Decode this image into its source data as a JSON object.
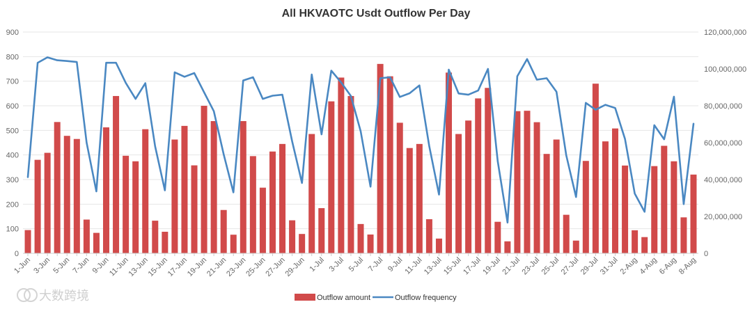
{
  "chart_data": {
    "type": "bar",
    "title": "All HKVAOTC Usdt Outflow Per Day",
    "categories": [
      "1-Jun",
      "2-Jun",
      "3-Jun",
      "4-Jun",
      "5-Jun",
      "6-Jun",
      "7-Jun",
      "8-Jun",
      "9-Jun",
      "10-Jun",
      "11-Jun",
      "12-Jun",
      "13-Jun",
      "14-Jun",
      "15-Jun",
      "16-Jun",
      "17-Jun",
      "18-Jun",
      "19-Jun",
      "20-Jun",
      "21-Jun",
      "22-Jun",
      "23-Jun",
      "24-Jun",
      "25-Jun",
      "26-Jun",
      "27-Jun",
      "28-Jun",
      "29-Jun",
      "30-Jun",
      "1-Jul",
      "2-Jul",
      "3-Jul",
      "4-Jul",
      "5-Jul",
      "6-Jul",
      "7-Jul",
      "8-Jul",
      "9-Jul",
      "10-Jul",
      "11-Jul",
      "12-Jul",
      "13-Jul",
      "14-Jul",
      "15-Jul",
      "16-Jul",
      "17-Jul",
      "18-Jul",
      "19-Jul",
      "20-Jul",
      "21-Jul",
      "22-Jul",
      "23-Jul",
      "24-Jul",
      "25-Jul",
      "26-Jul",
      "27-Jul",
      "28-Jul",
      "29-Jul",
      "30-Jul",
      "31-Jul",
      "1-Aug",
      "2-Aug",
      "3-Aug",
      "4-Aug",
      "5-Aug",
      "6-Aug",
      "7-Aug",
      "8-Aug"
    ],
    "xtick_labels": [
      "1-Jun",
      "3-Jun",
      "5-Jun",
      "7-Jun",
      "9-Jun",
      "11-Jun",
      "13-Jun",
      "15-Jun",
      "17-Jun",
      "19-Jun",
      "21-Jun",
      "23-Jun",
      "25-Jun",
      "27-Jun",
      "29-Jun",
      "1-Jul",
      "3-Jul",
      "5-Jul",
      "7-Jul",
      "9-Jul",
      "11-Jul",
      "13-Jul",
      "15-Jul",
      "17-Jul",
      "19-Jul",
      "21-Jul",
      "23-Jul",
      "25-Jul",
      "27-Jul",
      "29-Jul",
      "31-Jul",
      "2-Aug",
      "4-Aug",
      "6-Aug",
      "8-Aug"
    ],
    "series": [
      {
        "name": "Outflow amount",
        "type": "bar",
        "axis": "right",
        "color": "#d14a4a",
        "values": [
          12600000,
          50700000,
          54500000,
          71200000,
          63700000,
          62000000,
          18300000,
          11100000,
          68300000,
          85300000,
          52900000,
          49900000,
          67300000,
          17700000,
          11700000,
          61700000,
          69100000,
          47700000,
          80000000,
          71700000,
          23500000,
          10100000,
          71700000,
          52700000,
          35600000,
          55200000,
          59300000,
          17900000,
          10500000,
          64700000,
          24500000,
          82400000,
          95300000,
          85300000,
          15900000,
          10200000,
          102700000,
          96000000,
          70800000,
          57100000,
          59300000,
          18500000,
          8000000,
          98000000,
          64700000,
          72000000,
          84000000,
          89700000,
          17100000,
          6500000,
          77100000,
          77300000,
          71100000,
          53900000,
          61700000,
          20900000,
          6900000,
          50100000,
          92000000,
          60700000,
          67700000,
          47600000,
          12500000,
          8800000,
          47300000,
          58300000,
          49900000,
          19500000,
          42700000
        ]
      },
      {
        "name": "Outflow frequency",
        "type": "line",
        "axis": "left",
        "color": "#4a88c2",
        "values": [
          310,
          775,
          797,
          785,
          782,
          778,
          450,
          252,
          775,
          775,
          693,
          628,
          692,
          435,
          256,
          736,
          718,
          733,
          655,
          578,
          403,
          248,
          703,
          716,
          628,
          641,
          645,
          455,
          286,
          727,
          484,
          743,
          695,
          640,
          496,
          271,
          712,
          716,
          636,
          651,
          683,
          437,
          239,
          747,
          650,
          645,
          662,
          750,
          375,
          125,
          720,
          790,
          706,
          712,
          657,
          399,
          229,
          612,
          584,
          604,
          591,
          465,
          243,
          169,
          521,
          464,
          637,
          200,
          527
        ]
      }
    ],
    "y_left": {
      "min": 0,
      "max": 900,
      "ticks": [
        "0",
        "100",
        "200",
        "300",
        "400",
        "500",
        "600",
        "700",
        "800",
        "900"
      ]
    },
    "y_right": {
      "min": 0,
      "max": 120000000,
      "ticks": [
        "0",
        "20,000,000",
        "40,000,000",
        "60,000,000",
        "80,000,000",
        "100,000,000",
        "120,000,000"
      ]
    },
    "grid": true,
    "legend_position": "bottom-center"
  },
  "watermark": {
    "text": "大数跨境"
  }
}
